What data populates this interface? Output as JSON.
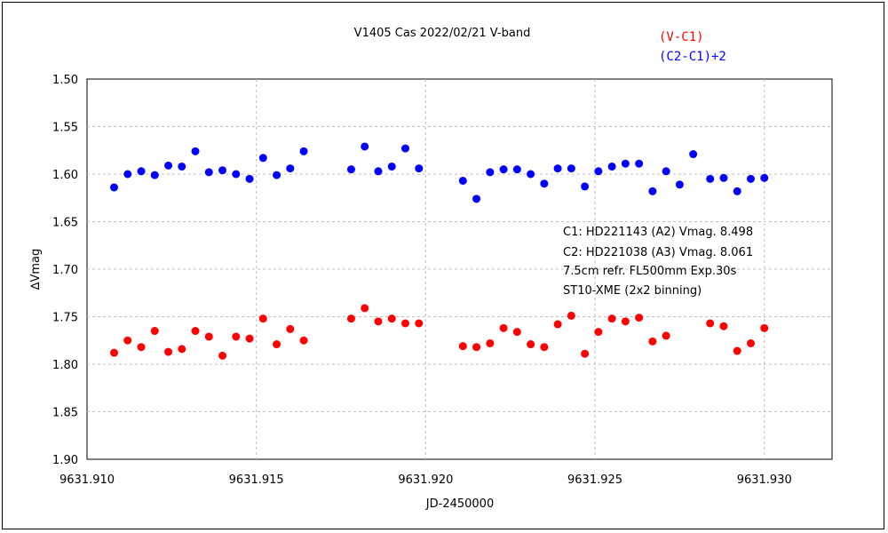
{
  "chart_data": {
    "type": "scatter",
    "title": "V1405 Cas   2022/02/21   V-band",
    "xlabel": "JD-2450000",
    "ylabel": "∆Vmag",
    "xlim": [
      9631.91,
      9631.932
    ],
    "ylim": [
      1.9,
      1.5
    ],
    "y_inverted": true,
    "grid": true,
    "legend_position": "top-right",
    "x_ticks": [
      9631.91,
      9631.915,
      9631.92,
      9631.925,
      9631.93
    ],
    "x_tick_labels": [
      "9631.910",
      "9631.915",
      "9631.920",
      "9631.925",
      "9631.930"
    ],
    "y_ticks": [
      1.5,
      1.55,
      1.6,
      1.65,
      1.7,
      1.75,
      1.8,
      1.85,
      1.9
    ],
    "y_tick_labels": [
      "1.50",
      "1.55",
      "1.60",
      "1.65",
      "1.70",
      "1.75",
      "1.80",
      "1.85",
      "1.90"
    ],
    "annotations": [
      "C1: HD221143 (A2) Vmag. 8.498",
      "C2: HD221038 (A3) Vmag. 8.061",
      "7.5cm refr. FL500mm Exp.30s",
      "ST10-XME (2x2 binning)"
    ],
    "series": [
      {
        "name": "(V-C1)",
        "color": "#ff0000",
        "x": [
          9631.9108,
          9631.9112,
          9631.9116,
          9631.912,
          9631.9124,
          9631.9128,
          9631.9132,
          9631.9136,
          9631.914,
          9631.9144,
          9631.9148,
          9631.9152,
          9631.9156,
          9631.916,
          9631.9164,
          9631.9178,
          9631.9182,
          9631.9186,
          9631.919,
          9631.9194,
          9631.9198,
          9631.9211,
          9631.9215,
          9631.9219,
          9631.9223,
          9631.9227,
          9631.9231,
          9631.9235,
          9631.9239,
          9631.9243,
          9631.9247,
          9631.9251,
          9631.9255,
          9631.9259,
          9631.9263,
          9631.9267,
          9631.9271,
          9631.9284,
          9631.9288,
          9631.9292,
          9631.9296,
          9631.93
        ],
        "y": [
          1.788,
          1.775,
          1.782,
          1.765,
          1.787,
          1.784,
          1.765,
          1.771,
          1.791,
          1.771,
          1.773,
          1.752,
          1.779,
          1.763,
          1.775,
          1.752,
          1.741,
          1.755,
          1.752,
          1.757,
          1.757,
          1.781,
          1.782,
          1.778,
          1.762,
          1.766,
          1.779,
          1.782,
          1.758,
          1.749,
          1.789,
          1.766,
          1.752,
          1.755,
          1.751,
          1.776,
          1.77,
          1.757,
          1.76,
          1.786,
          1.778,
          1.762
        ]
      },
      {
        "name": "(C2-C1)+2",
        "color": "#0000ff",
        "x": [
          9631.9108,
          9631.9112,
          9631.9116,
          9631.912,
          9631.9124,
          9631.9128,
          9631.9132,
          9631.9136,
          9631.914,
          9631.9144,
          9631.9148,
          9631.9152,
          9631.9156,
          9631.916,
          9631.9164,
          9631.9178,
          9631.9182,
          9631.9186,
          9631.919,
          9631.9194,
          9631.9198,
          9631.9211,
          9631.9215,
          9631.9219,
          9631.9223,
          9631.9227,
          9631.9231,
          9631.9235,
          9631.9239,
          9631.9243,
          9631.9247,
          9631.9251,
          9631.9255,
          9631.9259,
          9631.9263,
          9631.9267,
          9631.9271,
          9631.9275,
          9631.9279,
          9631.9284,
          9631.9288,
          9631.9292,
          9631.9296,
          9631.93
        ],
        "y": [
          1.614,
          1.6,
          1.597,
          1.601,
          1.591,
          1.592,
          1.576,
          1.598,
          1.596,
          1.6,
          1.605,
          1.583,
          1.601,
          1.594,
          1.576,
          1.595,
          1.571,
          1.597,
          1.592,
          1.573,
          1.594,
          1.607,
          1.626,
          1.598,
          1.595,
          1.595,
          1.6,
          1.61,
          1.594,
          1.594,
          1.613,
          1.597,
          1.592,
          1.589,
          1.589,
          1.618,
          1.597,
          1.611,
          1.579,
          1.605,
          1.604,
          1.618,
          1.605,
          1.604
        ]
      }
    ]
  }
}
